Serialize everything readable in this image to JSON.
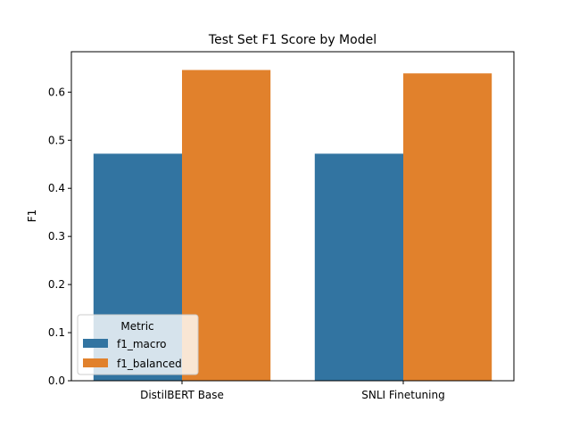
{
  "chart_data": {
    "type": "bar",
    "title": "Test Set F1 Score by Model",
    "xlabel": "",
    "ylabel": "F1",
    "categories": [
      "DistilBERT Base",
      "SNLI Finetuning"
    ],
    "series": [
      {
        "name": "f1_macro",
        "color": "#3274a1",
        "values": [
          0.472,
          0.472
        ]
      },
      {
        "name": "f1_balanced",
        "color": "#e1812c",
        "values": [
          0.646,
          0.639
        ]
      }
    ],
    "ylim": [
      0,
      0.684
    ],
    "yticks": [
      0.0,
      0.1,
      0.2,
      0.3,
      0.4,
      0.5,
      0.6
    ],
    "ytick_labels": [
      "0.0",
      "0.1",
      "0.2",
      "0.3",
      "0.4",
      "0.5",
      "0.6"
    ],
    "grid": false,
    "legend": {
      "title": "Metric",
      "placement": "lower-left"
    }
  }
}
